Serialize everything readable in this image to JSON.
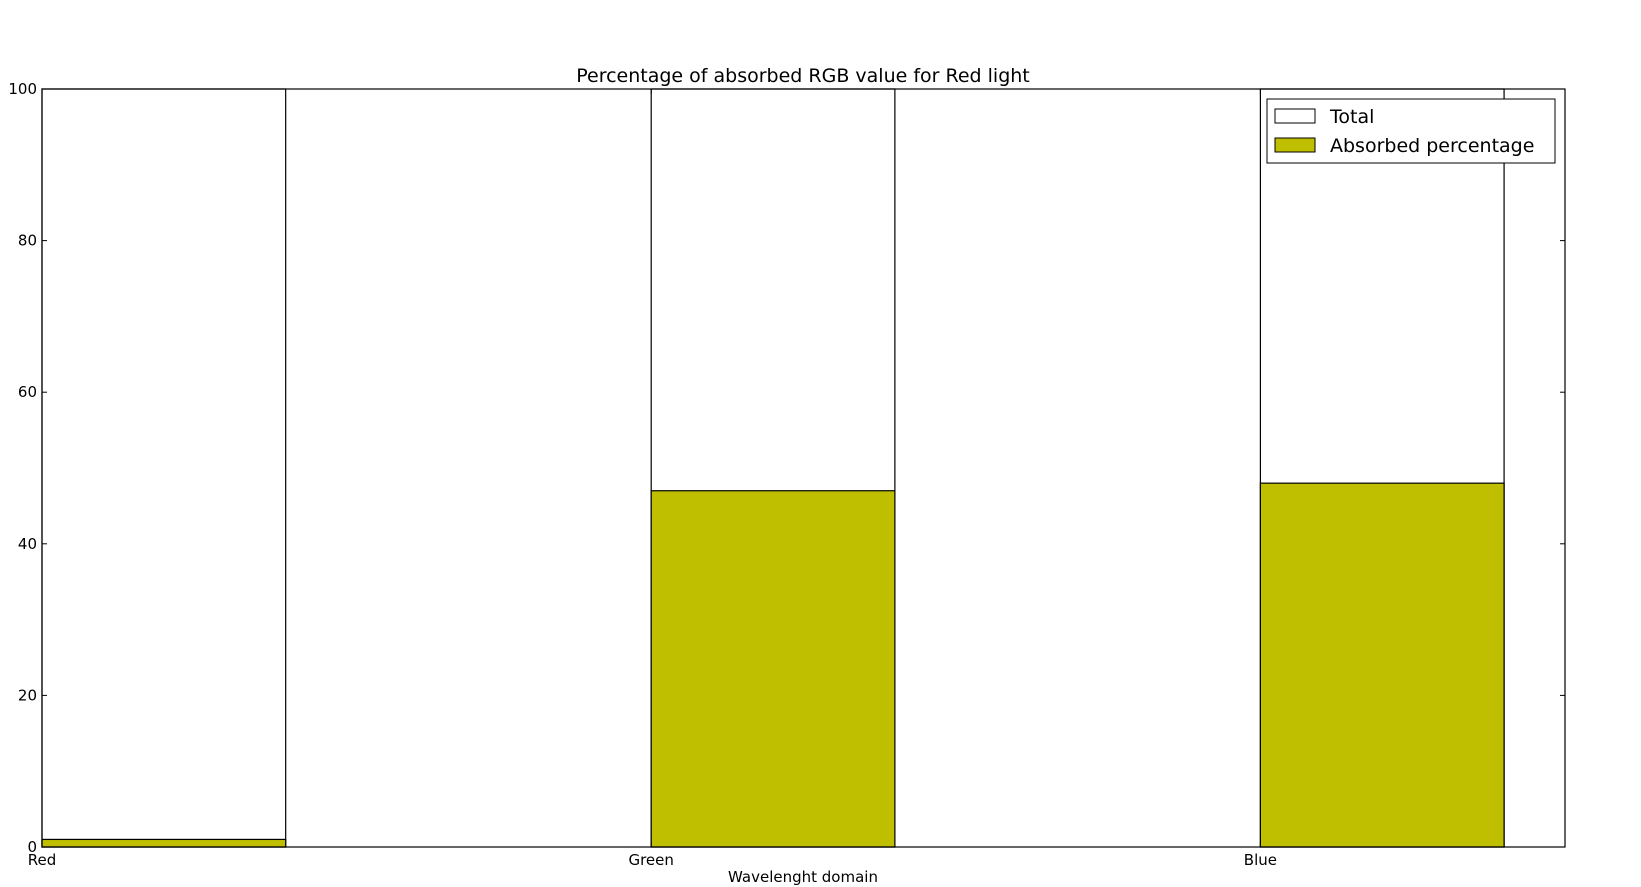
{
  "chart_data": {
    "type": "bar",
    "title": "Percentage of absorbed RGB value for Red light",
    "xlabel": "Wavelenght domain",
    "ylabel": "",
    "categories": [
      "Red",
      "Green",
      "Blue"
    ],
    "ylim": [
      0,
      100
    ],
    "yticks": [
      0,
      20,
      40,
      60,
      80,
      100
    ],
    "grid": false,
    "legend_position": "top-right",
    "series": [
      {
        "name": "Total",
        "values": [
          100,
          100,
          100
        ],
        "color": "#ffffff"
      },
      {
        "name": "Absorbed percentage",
        "values": [
          1,
          47,
          48
        ],
        "color": "#bfbf00"
      }
    ]
  }
}
